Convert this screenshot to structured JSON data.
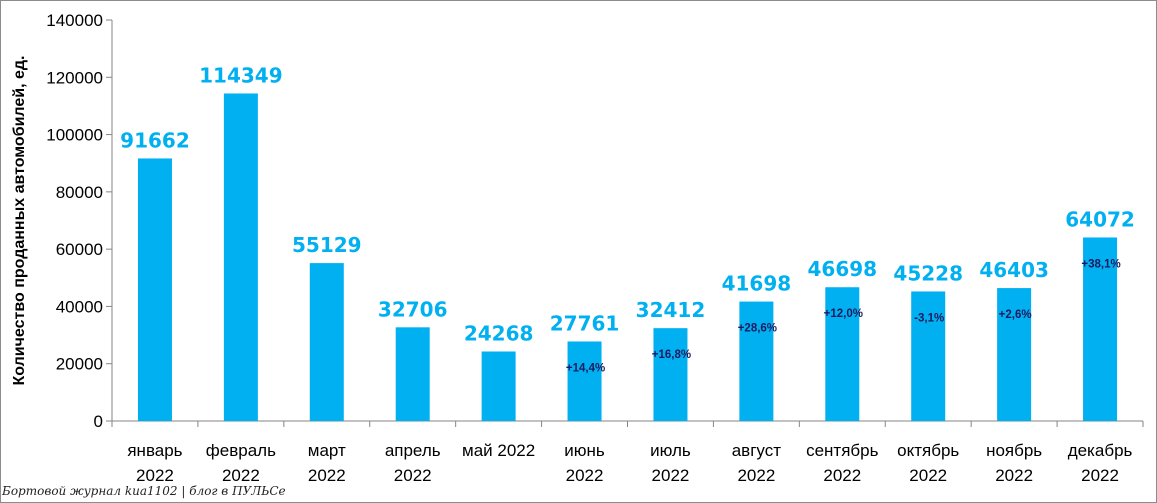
{
  "chart_data": {
    "type": "bar",
    "categories": [
      [
        "январь",
        "2022"
      ],
      [
        "февраль",
        "2022"
      ],
      [
        "март",
        "2022"
      ],
      [
        "апрель",
        "2022"
      ],
      [
        "май 2022"
      ],
      [
        "июнь",
        "2022"
      ],
      [
        "июль",
        "2022"
      ],
      [
        "август",
        "2022"
      ],
      [
        "сентябрь",
        "2022"
      ],
      [
        "октябрь",
        "2022"
      ],
      [
        "ноябрь",
        "2022"
      ],
      [
        "декабрь",
        "2022"
      ]
    ],
    "values": [
      91662,
      114349,
      55129,
      32706,
      24268,
      27761,
      32412,
      41698,
      46698,
      45228,
      46403,
      64072
    ],
    "value_labels": [
      "91662",
      "114349",
      "55129",
      "32706",
      "24268",
      "27761",
      "32412",
      "41698",
      "46698",
      "45228",
      "46403",
      "64072"
    ],
    "change_labels": [
      "",
      "",
      "",
      "",
      "",
      "+14,4%",
      "+16,8%",
      "+28,6%",
      "+12,0%",
      "-3,1%",
      "+2,6%",
      "+38,1%"
    ],
    "ylabel": "Количество проданных  автомобилей, ед.",
    "xlabel": "",
    "ylim": [
      0,
      140000
    ],
    "yticks": [
      0,
      20000,
      40000,
      60000,
      80000,
      100000,
      120000,
      140000
    ],
    "grid": false,
    "legend": "none",
    "bar_color": "#00b0f0",
    "value_label_color": "#00b0f0",
    "change_label_color": "#1a1a5e"
  },
  "watermark": "Бортовой журнал kua1102 | блог в ПУЛЬСе"
}
